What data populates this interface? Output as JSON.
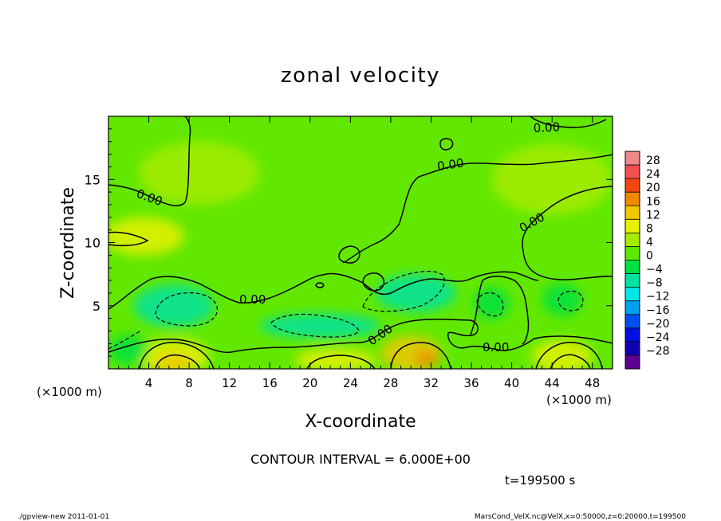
{
  "chart_data": {
    "type": "heatmap",
    "title": "zonal velocity",
    "xlabel": "X-coordinate",
    "ylabel": "Z-coordinate",
    "x_unit_note_left": "(×1000 m)",
    "x_unit_note_right": "(×1000 m)",
    "xlim": [
      0,
      50
    ],
    "ylim": [
      0,
      20
    ],
    "x_ticks": [
      4,
      8,
      12,
      16,
      20,
      24,
      28,
      32,
      36,
      40,
      44,
      48
    ],
    "y_ticks": [
      5,
      10,
      15
    ],
    "contour_interval_text": "CONTOUR INTERVAL = 6.000E+00",
    "time_text": "t=199500 s",
    "contour_labels": [
      "0.00",
      "0.00",
      "0.00",
      "0.00",
      "0.00",
      "0.00",
      "0.00"
    ],
    "colorbar": {
      "labels": [
        "28",
        "24",
        "20",
        "16",
        "12",
        "8",
        "4",
        "0",
        "−4",
        "−8",
        "−12",
        "−16",
        "−20",
        "−24",
        "−28"
      ],
      "levels": [
        30,
        26,
        22,
        18,
        14,
        10,
        6,
        2,
        -2,
        -6,
        -10,
        -14,
        -18,
        -22,
        -26,
        -30
      ],
      "colors": [
        "#f08a8a",
        "#f05050",
        "#f04810",
        "#f08800",
        "#f0c800",
        "#e6f000",
        "#a6ec00",
        "#60e800",
        "#00e040",
        "#00e2a0",
        "#00e6e6",
        "#00a0f0",
        "#0050f0",
        "#0010e0",
        "#1000b0",
        "#600090"
      ]
    },
    "field_blobs": [
      {
        "x": 6.5,
        "z": 1.0,
        "rx": 3.5,
        "rz": 1.4,
        "value": 10
      },
      {
        "x": 6.5,
        "z": 0.5,
        "rx": 2.0,
        "rz": 0.7,
        "value": 14
      },
      {
        "x": 22.5,
        "z": 0.7,
        "rx": 4.0,
        "rz": 0.9,
        "value": 9
      },
      {
        "x": 30.0,
        "z": 1.2,
        "rx": 3.0,
        "rz": 1.4,
        "value": 11
      },
      {
        "x": 31.5,
        "z": 0.8,
        "rx": 1.2,
        "rz": 0.6,
        "value": 15
      },
      {
        "x": 45.0,
        "z": 1.0,
        "rx": 3.0,
        "rz": 1.3,
        "value": 9
      },
      {
        "x": 6.5,
        "z": 5.0,
        "rx": 4.0,
        "rz": 1.7,
        "value": -8
      },
      {
        "x": 21.0,
        "z": 3.4,
        "rx": 6.0,
        "rz": 1.0,
        "value": -6
      },
      {
        "x": 30.5,
        "z": 6.0,
        "rx": 4.0,
        "rz": 1.5,
        "value": -7
      },
      {
        "x": 38.0,
        "z": 5.2,
        "rx": 1.8,
        "rz": 1.3,
        "value": -4
      },
      {
        "x": 45.0,
        "z": 5.5,
        "rx": 2.0,
        "rz": 1.3,
        "value": -4
      },
      {
        "x": 2.0,
        "z": 1.5,
        "rx": 2.0,
        "rz": 1.2,
        "value": -5
      },
      {
        "x": 3.5,
        "z": 10.5,
        "rx": 4.0,
        "rz": 1.5,
        "value": 7
      },
      {
        "x": 44.0,
        "z": 15.0,
        "rx": 6.0,
        "rz": 2.8,
        "value": 4
      },
      {
        "x": 9.0,
        "z": 15.5,
        "rx": 6.0,
        "rz": 2.5,
        "value": 3
      }
    ],
    "grid": false
  },
  "footer": {
    "left": "./gpview-new   2011-01-01",
    "right": "MarsCond_VelX.nc@VelX,x=0:50000,z=0:20000,t=199500"
  }
}
